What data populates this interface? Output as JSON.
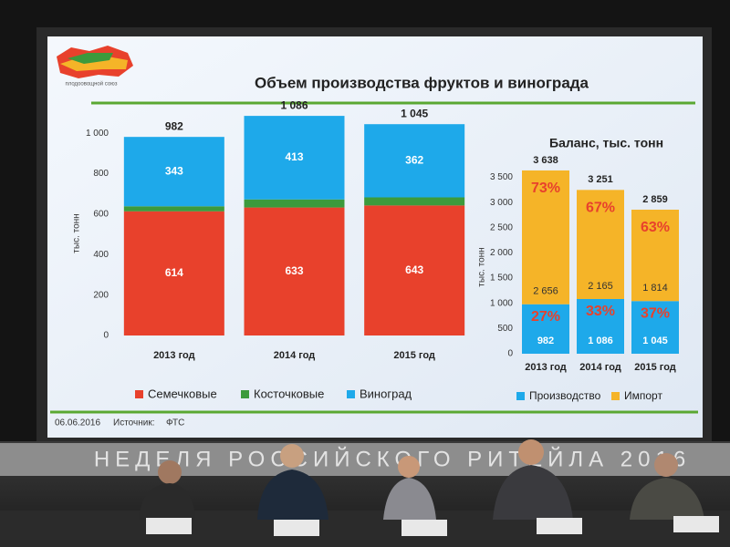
{
  "chart_data": [
    {
      "type": "bar",
      "stacked": true,
      "title": "Объем производства фруктов и винограда",
      "y_label": "тыс. тонн",
      "categories": [
        "2013 год",
        "2014 год",
        "2015 год"
      ],
      "series": [
        {
          "name": "Семечковые",
          "color": "#e8412c",
          "values": [
            614,
            633,
            643
          ]
        },
        {
          "name": "Косточковые",
          "color": "#3c9a3c",
          "values": [
            25,
            40,
            40
          ]
        },
        {
          "name": "Виноград",
          "color": "#1ea9ea",
          "values": [
            343,
            413,
            362
          ]
        }
      ],
      "totals": [
        982,
        1086,
        1045
      ],
      "totals_labels": [
        "982",
        "1 086",
        "1 045"
      ],
      "ylim": [
        0,
        1100
      ],
      "yticks": [
        0,
        200,
        400,
        600,
        800,
        {
          "value": 1000,
          "label": "1 000"
        }
      ],
      "grid": false
    },
    {
      "type": "bar",
      "stacked": true,
      "title": "Баланс, тыс. тонн",
      "y_label": "тыс. тонн",
      "categories": [
        "2013 год",
        "2014 год",
        "2015 год"
      ],
      "series": [
        {
          "name": "Производство",
          "color": "#1ea9ea",
          "values": [
            982,
            1086,
            1045
          ],
          "value_labels": [
            "982",
            "1 086",
            "1 045"
          ],
          "shares": [
            27,
            33,
            37
          ],
          "share_labels": [
            "27%",
            "33%",
            "37%"
          ]
        },
        {
          "name": "Импорт",
          "color": "#f5b428",
          "values": [
            2656,
            2165,
            1814
          ],
          "value_labels": [
            "2 656",
            "2 165",
            "1 814"
          ],
          "shares": [
            73,
            67,
            63
          ],
          "share_labels": [
            "73%",
            "67%",
            "63%"
          ]
        }
      ],
      "totals": [
        3638,
        3251,
        2859
      ],
      "totals_labels": [
        "3 638",
        "3 251",
        "2 859"
      ],
      "ylim": [
        0,
        3800
      ],
      "yticks": [
        0,
        500,
        {
          "value": 1000,
          "label": "1 000"
        },
        {
          "value": 1500,
          "label": "1 500"
        },
        {
          "value": 2000,
          "label": "2 000"
        },
        {
          "value": 2500,
          "label": "2 500"
        },
        {
          "value": 3000,
          "label": "3 000"
        },
        {
          "value": 3500,
          "label": "3 500"
        }
      ],
      "grid": false
    }
  ],
  "slide": {
    "logo_text": "плодоовощной союз",
    "date": "06.06.2016",
    "source_label": "Источник:",
    "source": "ФТС"
  },
  "banner": "НЕДЕЛЯ РОССИЙСКОГО РИТЕЙЛА 2016"
}
